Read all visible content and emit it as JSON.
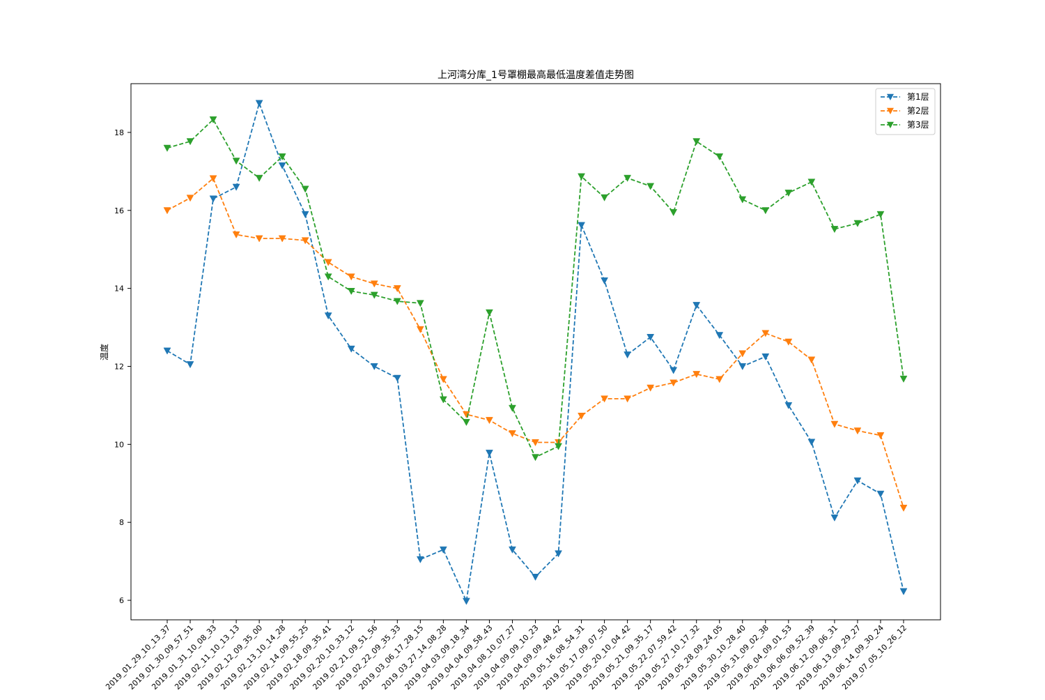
{
  "chart_data": {
    "type": "line",
    "title": "上河湾分库_1号罩棚最高最低温度差值走势图",
    "xlabel": "",
    "ylabel": "温度",
    "ylim": [
      5.5,
      19.25
    ],
    "yticks": [
      6,
      8,
      10,
      12,
      14,
      16,
      18
    ],
    "grid": false,
    "legend_position": "top-right",
    "categories": [
      "2019_01_29_10_13_37",
      "2019_01_30_09_57_51",
      "2019_01_31_10_08_33",
      "2019_02_11_10_13_13",
      "2019_02_12_09_35_00",
      "2019_02_13_10_14_28",
      "2019_02_14_09_55_25",
      "2019_02_18_09_35_41",
      "2019_02_20_10_33_12",
      "2019_02_21_09_51_56",
      "2019_02_22_09_35_33",
      "2019_03_06_17_28_15",
      "2019_03_27_14_08_28",
      "2019_04_03_09_18_34",
      "2019_04_04_09_58_43",
      "2019_04_08_10_07_27",
      "2019_04_09_09_10_23",
      "2019_04_09_09_48_42",
      "2019_05_16_08_54_31",
      "2019_05_17_09_07_50",
      "2019_05_20_10_04_42",
      "2019_05_21_09_35_17",
      "2019_05_22_07_59_42",
      "2019_05_27_10_17_32",
      "2019_05_28_09_24_05",
      "2019_05_30_10_28_40",
      "2019_05_31_09_02_38",
      "2019_06_04_09_01_53",
      "2019_06_06_09_52_39",
      "2019_06_12_09_06_31",
      "2019_06_13_09_29_27",
      "2019_06_14_09_30_24",
      "2019_07_05_10_26_12"
    ],
    "series": [
      {
        "name": "第1层",
        "color": "#1f77b4",
        "values": [
          12.4,
          12.05,
          16.3,
          16.6,
          18.75,
          17.15,
          15.9,
          13.3,
          12.45,
          12.0,
          11.7,
          7.05,
          7.3,
          5.98,
          9.78,
          7.3,
          6.6,
          7.2,
          15.62,
          14.2,
          12.3,
          12.75,
          11.9,
          13.57,
          12.8,
          12.0,
          12.25,
          11.0,
          10.06,
          8.12,
          9.07,
          8.73,
          6.23
        ]
      },
      {
        "name": "第2层",
        "color": "#ff7f0e",
        "values": [
          16.0,
          16.32,
          16.82,
          15.38,
          15.28,
          15.28,
          15.23,
          14.67,
          14.3,
          14.12,
          14.0,
          12.95,
          11.67,
          10.77,
          10.62,
          10.28,
          10.05,
          10.05,
          10.73,
          11.17,
          11.17,
          11.45,
          11.58,
          11.8,
          11.67,
          12.33,
          12.85,
          12.63,
          12.17,
          10.52,
          10.35,
          10.23,
          8.37
        ]
      },
      {
        "name": "第3层",
        "color": "#2ca02c",
        "values": [
          17.6,
          17.77,
          18.33,
          17.27,
          16.83,
          17.38,
          16.55,
          14.3,
          13.93,
          13.83,
          13.67,
          13.62,
          11.15,
          10.57,
          13.38,
          10.93,
          9.67,
          9.95,
          16.87,
          16.33,
          16.83,
          16.62,
          15.95,
          17.77,
          17.38,
          16.28,
          16.0,
          16.45,
          16.73,
          15.52,
          15.67,
          15.9,
          11.68
        ]
      }
    ]
  }
}
